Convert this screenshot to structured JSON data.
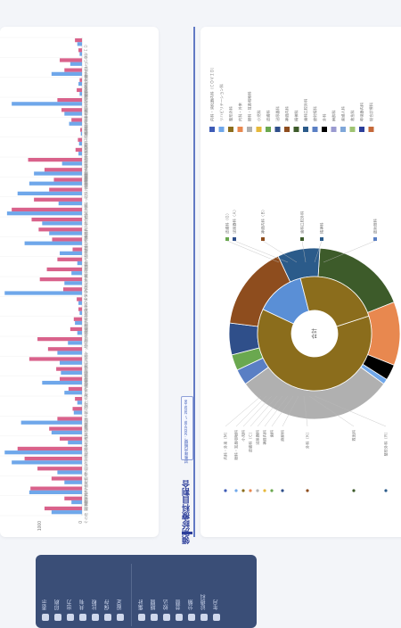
{
  "page": {
    "title": "領別診療科目割合",
    "date_range": "対象年月期間：2023-05 〜 2025-06"
  },
  "colors": {
    "series_a": "#d9628b",
    "series_b": "#6fa7ea",
    "accent": "#2c3e9a",
    "toolbar_bg": "#3a4e77"
  },
  "chart_data": [
    {
      "type": "bar",
      "orientation": "horizontal",
      "title": "",
      "axis_ticks": [
        "0",
        "1000",
        "2000"
      ],
      "categories": [
        "内科・消化器内科・ＣＯＶＩＤ",
        "リハビリテーション科",
        "整形外科・リハビリ",
        "内科・ＣＯＶＩＤ・外来",
        "消化器内科",
        "循環器内科・糖尿病内科",
        "眼科・耳鼻咽喉科",
        "小児科・アレルギー科",
        "皮膚科・形成外科",
        "泌尿器科・婦人科・ＣＯＶＩＤ",
        "神経内科・脳神経内科",
        "精神科・心療内科",
        "歯科口腔外科",
        "放射線科",
        "外科・乳腺外科",
        "麻酔科・ペインクリニック",
        "産婦人科",
        "救急科",
        "内科・呼吸器内科",
        "総合診療科",
        "腎臓内科・透析内科",
        "血液内科",
        "内科・ＣＯＶＩＤ・外来・救急",
        "内分泌内科",
        "リウマチ科",
        "感染症内科・ＣＯＶＩＤ",
        "老年科",
        "病理診断科",
        "臨床検査科",
        "腫瘍内科",
        "健診・人間ドック",
        "形成外科・美容外科",
        "心臓血管外科",
        "呼吸器外科",
        "漢方内科",
        "女性外来",
        "内科・消化器・循環器",
        "脳神経外科",
        "小児外科",
        "耳鼻咽喉科",
        "頭頸部外科",
        "アレルギー科",
        "整形外科・スポーツ医学",
        "在宅医療",
        "緩和ケア内科",
        "東洋医学科",
        "歯科",
        "その他"
      ],
      "series": [
        {
          "values": [
            120,
            60,
            380,
            300,
            40,
            90,
            420,
            350,
            180,
            30,
            70,
            110,
            920,
            640,
            480,
            560,
            820,
            1200,
            860,
            740,
            510,
            160,
            420,
            600,
            720,
            320,
            90,
            60,
            140,
            200,
            760,
            580,
            900,
            440,
            380,
            230,
            120,
            160,
            420,
            560,
            380,
            1100,
            980,
            760,
            520,
            880,
            300,
            640
          ]
        },
        {
          "values": [
            80,
            40,
            200,
            520,
            60,
            40,
            1200,
            300,
            220,
            20,
            50,
            60,
            340,
            820,
            900,
            1100,
            400,
            1280,
            680,
            560,
            980,
            380,
            80,
            180,
            300,
            1320,
            60,
            40,
            120,
            80,
            240,
            420,
            380,
            360,
            680,
            300,
            80,
            140,
            1040,
            520,
            240,
            1320,
            1200,
            420,
            300,
            900,
            180,
            520
          ]
        }
      ]
    },
    {
      "type": "pie",
      "subtype": "sunburst",
      "center_label": "合計",
      "legend_placement": "top",
      "legend": [
        {
          "label": "内科・消化器内科（ＣＯＶＩＤ）",
          "color": "#3d5bb6"
        },
        {
          "label": "リハビリテーション科",
          "color": "#6fa7ea"
        },
        {
          "label": "整形外科",
          "color": "#8b6d1c"
        },
        {
          "label": "内科・外来",
          "color": "#e8884f"
        },
        {
          "label": "眼科・耳鼻咽喉科",
          "color": "#b0b0b0"
        },
        {
          "label": "小児科",
          "color": "#e6b83a"
        },
        {
          "label": "皮膚科",
          "color": "#6aa84f"
        },
        {
          "label": "泌尿器科",
          "color": "#2f4f8a"
        },
        {
          "label": "神経内科",
          "color": "#8e4d1e"
        },
        {
          "label": "精神科",
          "color": "#3d5b2a"
        },
        {
          "label": "歯科口腔外科",
          "color": "#2b5b8a"
        },
        {
          "label": "放射線科",
          "color": "#5a7fc4"
        },
        {
          "label": "外科",
          "color": "#000000"
        },
        {
          "label": "麻酔科",
          "color": "#9a9ad0"
        },
        {
          "label": "産婦人科",
          "color": "#7fa7d9"
        },
        {
          "label": "救急科",
          "color": "#9fc472"
        },
        {
          "label": "呼吸器内科",
          "color": "#2c3e9a"
        },
        {
          "label": "総合診療科",
          "color": "#c5693a"
        }
      ],
      "inner_ring": [
        {
          "label": "内科",
          "value": 62,
          "color": "#8b6d1c"
        },
        {
          "label": "外科",
          "value": 14,
          "color": "#5a8fd6"
        },
        {
          "label": "その他",
          "value": 24,
          "color": "#8b6d1c"
        }
      ],
      "outer_ring": [
        {
          "label": "整形外科",
          "value": 18,
          "color": "#3d5b2a"
        },
        {
          "label": "内科・外来",
          "value": 12,
          "color": "#e8884f"
        },
        {
          "label": "外科",
          "value": 3,
          "color": "#000000"
        },
        {
          "label": "リハビリ",
          "value": 1,
          "color": "#6fa7ea"
        },
        {
          "label": "眼科・耳鼻咽喉科",
          "value": 30,
          "color": "#b0b0b0"
        },
        {
          "label": "放射線科",
          "value": 3,
          "color": "#5a7fc4"
        },
        {
          "label": "皮膚科",
          "value": 3,
          "color": "#6aa84f"
        },
        {
          "label": "泌尿器科",
          "value": 6,
          "color": "#2f4f8a"
        },
        {
          "label": "神経内科",
          "value": 16,
          "color": "#8e4d1e"
        },
        {
          "label": "歯科口腔外科",
          "value": 8,
          "color": "#2b5b8a"
        }
      ],
      "callouts_top": [
        "皮膚科（Ｇ）",
        "泌尿器科（Ａ）",
        "神経内科（Ｂ）",
        "歯科口腔外科",
        "精神科",
        "放射線科"
      ],
      "callouts_bottom": [
        "内科・外来（Ｍ）",
        "眼科・耳鼻咽喉科",
        "小児科",
        "皮膚科（Ｃ）",
        "泌尿器科",
        "神経内科",
        "歯科",
        "麻酔科",
        "外科（Ｋ）",
        "救急科",
        "整形外科（Ｒ）"
      ]
    }
  ],
  "toolbar": {
    "left_buttons": [
      "表示",
      "印刷",
      "出力",
      "共有",
      "比較",
      "保存",
      "設定"
    ],
    "right_buttons": [
      "集計",
      "期間",
      "絞込",
      "並替",
      "分類",
      "診療科",
      "年月"
    ]
  }
}
